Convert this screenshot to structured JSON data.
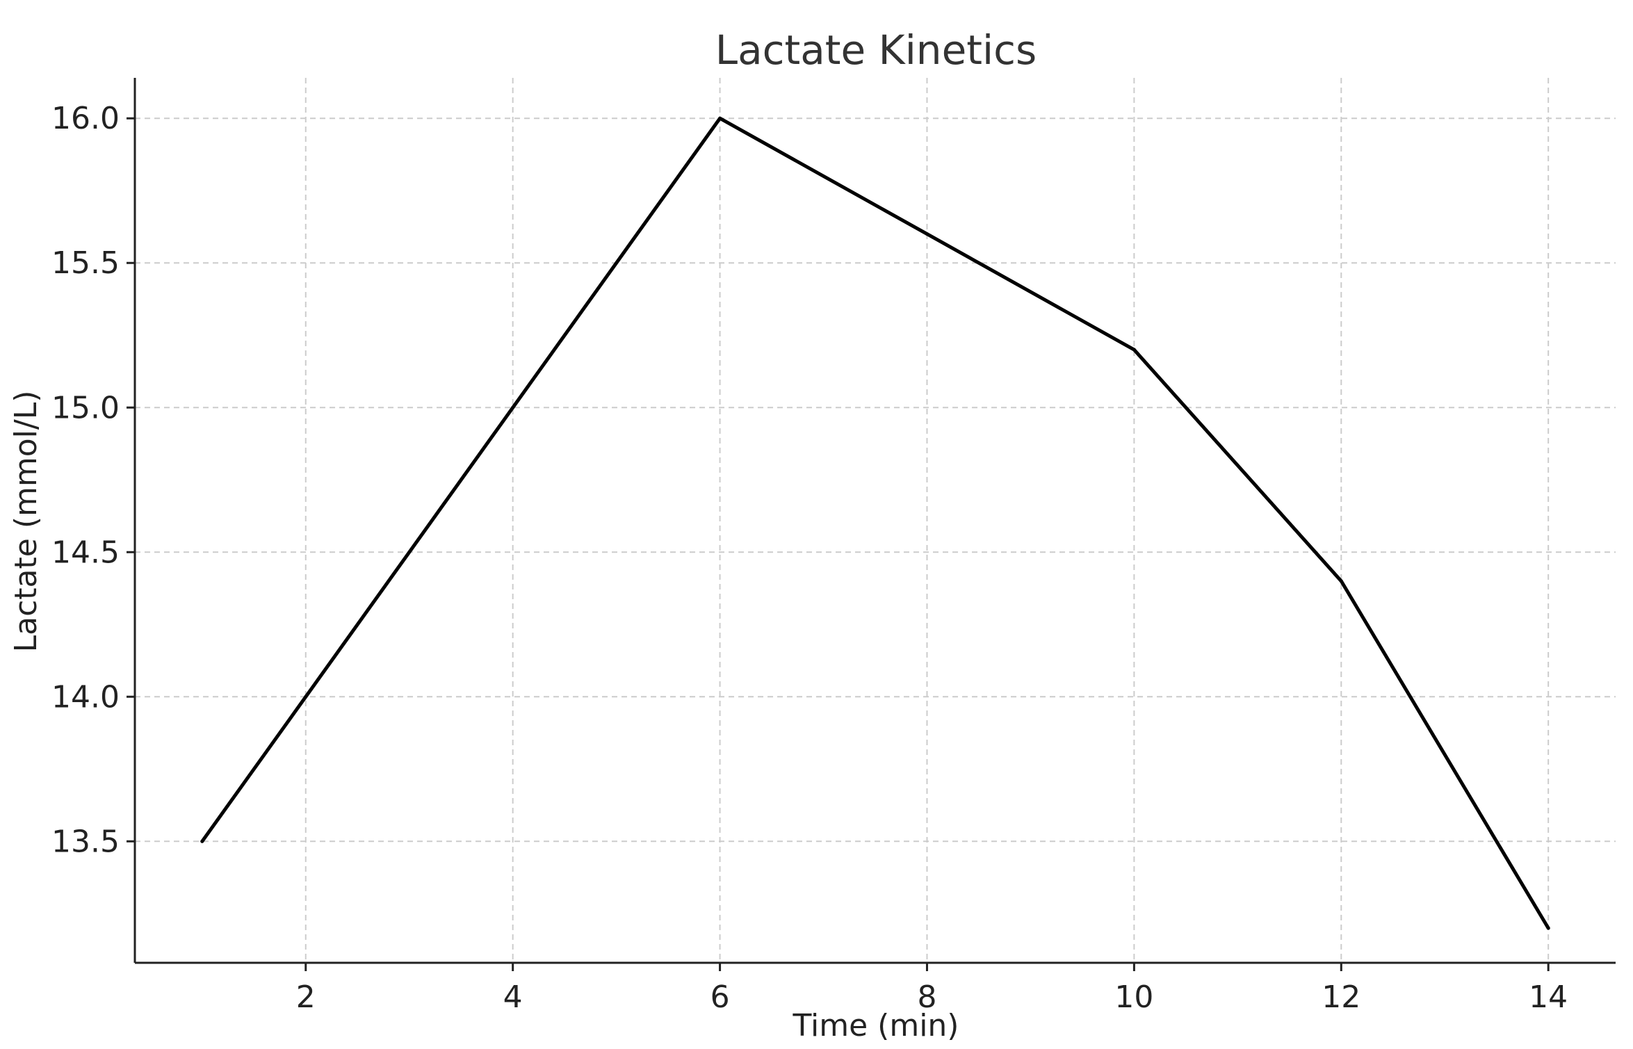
{
  "chart_data": {
    "type": "line",
    "title": "Lactate Kinetics",
    "xlabel": "Time (min)",
    "ylabel": "Lactate (mmol/L)",
    "x": [
      1,
      2,
      4,
      6,
      8,
      10,
      12,
      14
    ],
    "series": [
      {
        "values": [
          13.5,
          14.0,
          15.0,
          16.0,
          15.6,
          15.2,
          14.4,
          13.2
        ],
        "color": "#000000"
      }
    ],
    "xlim": [
      0.35,
      14.65
    ],
    "ylim": [
      13.08,
      16.14
    ],
    "x_ticks": [
      2,
      4,
      6,
      8,
      10,
      12,
      14
    ],
    "x_tick_labels": [
      "2",
      "4",
      "6",
      "8",
      "10",
      "12",
      "14"
    ],
    "y_ticks": [
      13.5,
      14.0,
      14.5,
      15.0,
      15.5,
      16.0
    ],
    "y_tick_labels": [
      "13.5",
      "14.0",
      "14.5",
      "15.0",
      "15.5",
      "16.0"
    ],
    "grid": true,
    "legend": "none"
  }
}
